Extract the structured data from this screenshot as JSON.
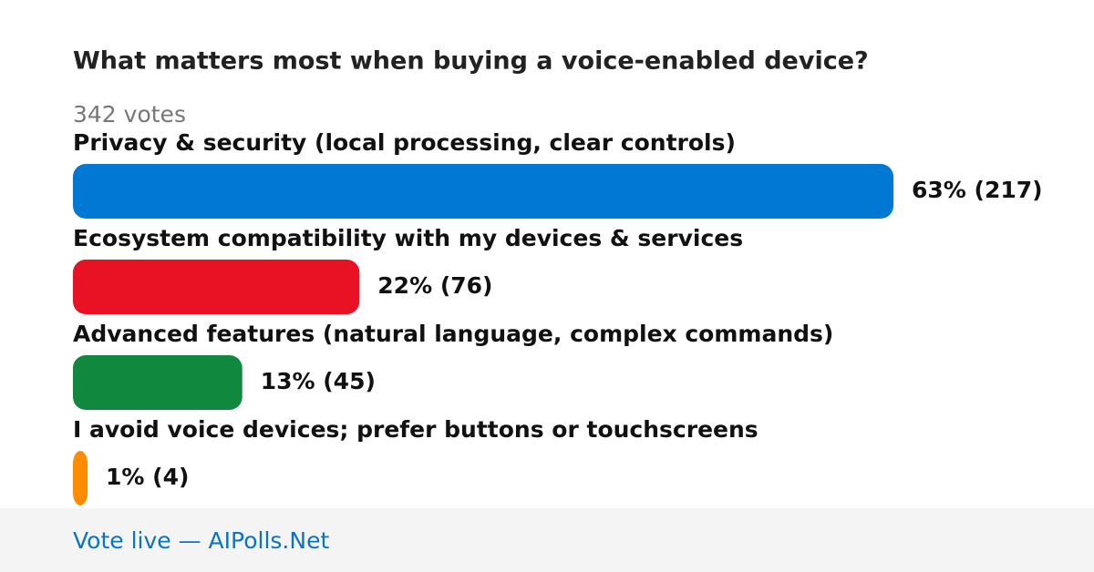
{
  "chart_data": {
    "type": "bar",
    "orientation": "horizontal",
    "title": "What matters most when buying a voice-enabled device?",
    "subtitle": "342 votes",
    "categories": [
      "Privacy & security (local processing, clear controls)",
      "Ecosystem compatibility with my devices & services",
      "Advanced features (natural language, complex commands)",
      "I avoid voice devices; prefer buttons or touchscreens"
    ],
    "values": [
      63,
      22,
      13,
      1
    ],
    "value_labels": [
      "63% (217)",
      "22% (76)",
      "13% (45)",
      "1% (4)"
    ],
    "colors": [
      "#0078d4",
      "#e81224",
      "#10893e",
      "#ff8c00"
    ]
  },
  "footer": "Vote live — AIPolls.Net"
}
